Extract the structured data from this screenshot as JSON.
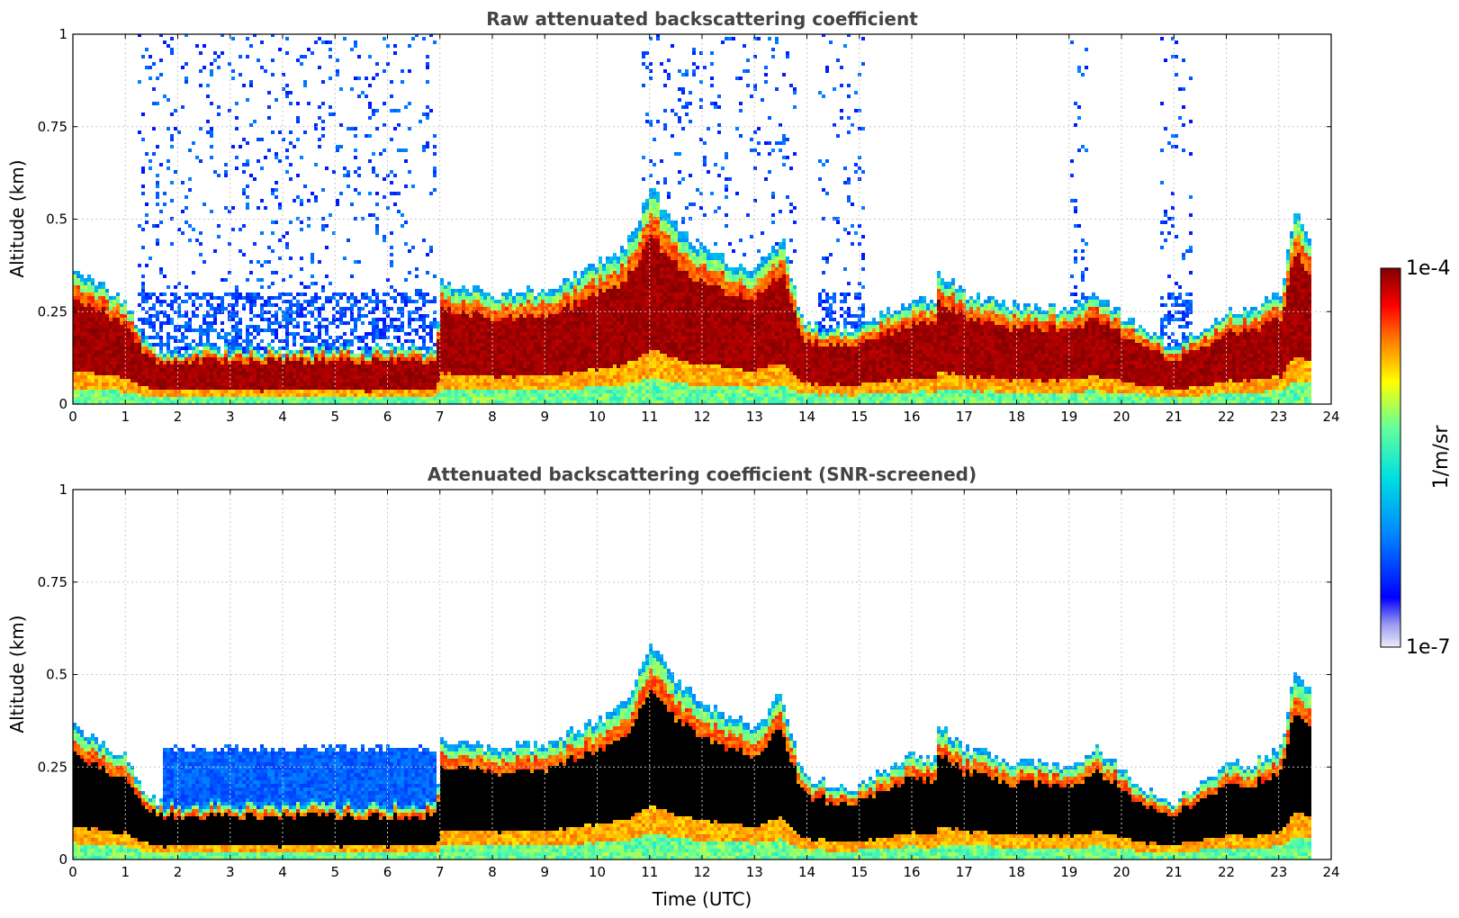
{
  "chart_data": [
    {
      "type": "heatmap",
      "title": "Raw attenuated backscattering coefficient",
      "xlabel": "",
      "ylabel": "Altitude (km)",
      "xlim": [
        0,
        24
      ],
      "ylim": [
        0,
        1
      ],
      "x_ticks": [
        "0",
        "1",
        "2",
        "3",
        "4",
        "5",
        "6",
        "7",
        "8",
        "9",
        "10",
        "11",
        "12",
        "13",
        "14",
        "15",
        "16",
        "17",
        "18",
        "19",
        "20",
        "21",
        "22",
        "23",
        "24"
      ],
      "y_ticks": [
        "0",
        "0.25",
        "0.5",
        "0.75",
        "1"
      ],
      "grid": true,
      "boundary_layer_top_km": {
        "time_utc": [
          0,
          0.5,
          1.0,
          1.3,
          1.6,
          2,
          3,
          4,
          5,
          6,
          6.9,
          7.0,
          8,
          9,
          10,
          10.5,
          11,
          11.5,
          12,
          12.5,
          13,
          13.5,
          13.9,
          14.5,
          15,
          15.5,
          16,
          16.4,
          16.5,
          17,
          18,
          19,
          19.5,
          20,
          20.5,
          21,
          21.5,
          22,
          22.5,
          23,
          23.3,
          23.6
        ],
        "altitude_km": [
          0.36,
          0.32,
          0.28,
          0.18,
          0.15,
          0.15,
          0.15,
          0.15,
          0.15,
          0.15,
          0.15,
          0.33,
          0.3,
          0.31,
          0.38,
          0.42,
          0.58,
          0.48,
          0.42,
          0.38,
          0.36,
          0.45,
          0.22,
          0.2,
          0.2,
          0.25,
          0.28,
          0.27,
          0.36,
          0.3,
          0.26,
          0.26,
          0.3,
          0.24,
          0.18,
          0.16,
          0.2,
          0.25,
          0.26,
          0.3,
          0.52,
          0.44
        ]
      },
      "noise_regions_utc": [
        [
          1.2,
          6.9
        ],
        [
          10.8,
          13.8
        ],
        [
          14.2,
          15.1
        ],
        [
          19.0,
          19.3
        ],
        [
          20.7,
          21.3
        ]
      ],
      "data_end_utc": 23.65
    },
    {
      "type": "heatmap",
      "title": "Attenuated backscattering coefficient (SNR-screened)",
      "xlabel": "Time (UTC)",
      "ylabel": "Altitude (km)",
      "xlim": [
        0,
        24
      ],
      "ylim": [
        0,
        1
      ],
      "x_ticks": [
        "0",
        "1",
        "2",
        "3",
        "4",
        "5",
        "6",
        "7",
        "8",
        "9",
        "10",
        "11",
        "12",
        "13",
        "14",
        "15",
        "16",
        "17",
        "18",
        "19",
        "20",
        "21",
        "22",
        "23",
        "24"
      ],
      "y_ticks": [
        "0",
        "0.25",
        "0.5",
        "0.75",
        "1"
      ],
      "grid": true,
      "screened_noise_top_km": 0.3,
      "data_end_utc": 23.65
    }
  ],
  "colorbar": {
    "max_label": "1e-4",
    "min_label": "1e-7",
    "unit_label": "1/m/sr",
    "scale": "log",
    "colormap": "jet",
    "range": [
      1e-07,
      0.0001
    ],
    "colors": [
      "#e8e8f8",
      "#0000ff",
      "#00aaff",
      "#22e8d0",
      "#ccff00",
      "#ff8800",
      "#ff0000",
      "#800000"
    ]
  }
}
